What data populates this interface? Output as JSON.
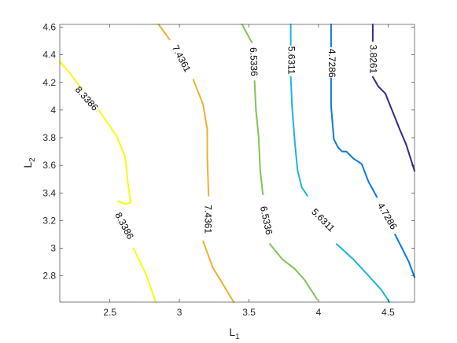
{
  "chart_data": {
    "type": "contour",
    "xlabel": {
      "main": "L",
      "sub": "1"
    },
    "ylabel": {
      "main": "L",
      "sub": "2"
    },
    "xlim": [
      2.14,
      4.69
    ],
    "ylim": [
      2.61,
      4.62
    ],
    "xticks": [
      2.5,
      3,
      3.5,
      4,
      4.5
    ],
    "xtick_labels": [
      "2.5",
      "3",
      "3.5",
      "4",
      "4.5"
    ],
    "yticks": [
      2.8,
      3,
      3.2,
      3.4,
      3.6,
      3.8,
      4,
      4.2,
      4.4,
      4.6
    ],
    "ytick_labels": [
      "2.8",
      "3",
      "3.2",
      "3.4",
      "3.6",
      "3.8",
      "4",
      "4.2",
      "4.4",
      "4.6"
    ],
    "grid": false,
    "levels": [
      {
        "label": "8.3386",
        "color": "#f9fb0e",
        "segments": [
          [
            [
              2.14,
              4.35
            ],
            [
              2.22,
              4.26
            ],
            [
              2.29,
              4.16
            ]
          ],
          [
            [
              2.42,
              4.0
            ],
            [
              2.55,
              3.81
            ],
            [
              2.61,
              3.66
            ],
            [
              2.63,
              3.47
            ],
            [
              2.65,
              3.33
            ],
            [
              2.61,
              3.32
            ],
            [
              2.56,
              3.34
            ]
          ],
          [
            [
              2.67,
              3.0
            ],
            [
              2.76,
              2.81
            ],
            [
              2.83,
              2.61
            ]
          ]
        ],
        "labels_at": [
          [
            2.33,
            4.08
          ],
          [
            2.6,
            3.16
          ]
        ],
        "label_angles": [
          48,
          62
        ]
      },
      {
        "label": "7.4361",
        "color": "#edb035",
        "segments": [
          [
            [
              2.85,
              4.62
            ],
            [
              2.93,
              4.51
            ]
          ],
          [
            [
              3.1,
              4.22
            ],
            [
              3.17,
              4.04
            ],
            [
              3.2,
              3.86
            ],
            [
              3.2,
              3.66
            ],
            [
              3.21,
              3.38
            ]
          ],
          [
            [
              3.17,
              3.05
            ],
            [
              3.24,
              2.86
            ],
            [
              3.3,
              2.76
            ],
            [
              3.39,
              2.61
            ]
          ]
        ],
        "labels_at": [
          [
            3.01,
            4.37
          ],
          [
            3.2,
            3.21
          ]
        ],
        "label_angles": [
          62,
          90
        ]
      },
      {
        "label": "6.5336",
        "color": "#7fc45a",
        "segments": [
          [
            [
              3.45,
              4.62
            ],
            [
              3.52,
              4.49
            ]
          ],
          [
            [
              3.54,
              4.21
            ],
            [
              3.55,
              4.0
            ],
            [
              3.57,
              3.8
            ],
            [
              3.58,
              3.57
            ],
            [
              3.6,
              3.39
            ]
          ],
          [
            [
              3.65,
              3.03
            ],
            [
              3.74,
              2.92
            ],
            [
              3.83,
              2.85
            ],
            [
              3.9,
              2.77
            ],
            [
              3.99,
              2.63
            ]
          ]
        ],
        "labels_at": [
          [
            3.53,
            4.35
          ],
          [
            3.62,
            3.2
          ]
        ],
        "label_angles": [
          88,
          78
        ]
      },
      {
        "label": "5.6311",
        "color": "#1cb6d4",
        "segments": [
          [
            [
              3.8,
              4.62
            ],
            [
              3.8,
              4.47
            ]
          ],
          [
            [
              3.8,
              4.24
            ],
            [
              3.81,
              4.02
            ],
            [
              3.83,
              3.76
            ],
            [
              3.85,
              3.56
            ],
            [
              3.88,
              3.44
            ],
            [
              3.92,
              3.38
            ]
          ],
          [
            [
              4.13,
              3.03
            ],
            [
              4.25,
              2.92
            ],
            [
              4.36,
              2.8
            ],
            [
              4.45,
              2.7
            ],
            [
              4.51,
              2.61
            ]
          ]
        ],
        "labels_at": [
          [
            3.8,
            4.36
          ],
          [
            4.03,
            3.2
          ]
        ],
        "label_angles": [
          90,
          45
        ]
      },
      {
        "label": "4.7286",
        "color": "#0d79d9",
        "segments": [
          [
            [
              4.09,
              4.62
            ],
            [
              4.09,
              4.46
            ]
          ],
          [
            [
              4.09,
              4.23
            ],
            [
              4.09,
              4.03
            ],
            [
              4.11,
              3.79
            ],
            [
              4.14,
              3.73
            ],
            [
              4.17,
              3.7
            ],
            [
              4.2,
              3.7
            ],
            [
              4.25,
              3.65
            ],
            [
              4.31,
              3.61
            ],
            [
              4.36,
              3.48
            ],
            [
              4.42,
              3.37
            ]
          ],
          [
            [
              4.55,
              3.1
            ],
            [
              4.6,
              3.0
            ],
            [
              4.65,
              2.9
            ],
            [
              4.69,
              2.79
            ]
          ]
        ],
        "labels_at": [
          [
            4.09,
            4.34
          ],
          [
            4.49,
            3.23
          ]
        ],
        "label_angles": [
          90,
          60
        ]
      },
      {
        "label": "3.8261",
        "color": "#35288b",
        "segments": [
          [
            [
              4.39,
              4.62
            ],
            [
              4.39,
              4.5
            ]
          ],
          [
            [
              4.39,
              4.24
            ],
            [
              4.43,
              4.17
            ],
            [
              4.48,
              4.12
            ],
            [
              4.52,
              4.02
            ],
            [
              4.58,
              3.87
            ],
            [
              4.63,
              3.75
            ],
            [
              4.69,
              3.56
            ]
          ]
        ],
        "labels_at": [
          [
            4.39,
            4.37
          ]
        ],
        "label_angles": [
          90
        ]
      }
    ]
  }
}
